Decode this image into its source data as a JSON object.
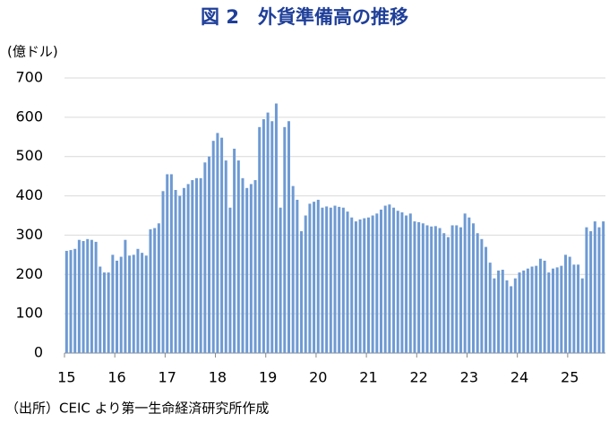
{
  "chart_data": {
    "type": "bar",
    "title": "図 2　外貨準備高の推移",
    "y_label": "(億ドル)",
    "source": "（出所）CEIC より第一生命経済研究所作成",
    "color": "#6e9ad3",
    "grid": true,
    "ylim": [
      0,
      700
    ],
    "yticks": [
      0,
      100,
      200,
      300,
      400,
      500,
      600,
      700
    ],
    "categories": [
      "15",
      null,
      null,
      null,
      null,
      null,
      null,
      null,
      null,
      null,
      null,
      null,
      "16",
      null,
      null,
      null,
      null,
      null,
      null,
      null,
      null,
      null,
      null,
      null,
      "17",
      null,
      null,
      null,
      null,
      null,
      null,
      null,
      null,
      null,
      null,
      null,
      "18",
      null,
      null,
      null,
      null,
      null,
      null,
      null,
      null,
      null,
      null,
      null,
      "19",
      null,
      null,
      null,
      null,
      null,
      null,
      null,
      null,
      null,
      null,
      null,
      "20",
      null,
      null,
      null,
      null,
      null,
      null,
      null,
      null,
      null,
      null,
      null,
      "21",
      null,
      null,
      null,
      null,
      null,
      null,
      null,
      null,
      null,
      null,
      null,
      "22",
      null,
      null,
      null,
      null,
      null,
      null,
      null,
      null,
      null,
      null,
      null,
      "23",
      null,
      null,
      null,
      null,
      null,
      null,
      null,
      null,
      null,
      null,
      null,
      "24",
      null,
      null,
      null,
      null,
      null,
      null,
      null,
      null,
      null,
      null,
      null,
      "25",
      null,
      null,
      null,
      null,
      null,
      null,
      null,
      null
    ],
    "values": [
      260,
      262,
      265,
      288,
      285,
      290,
      288,
      283,
      220,
      205,
      205,
      250,
      235,
      245,
      288,
      248,
      250,
      265,
      255,
      248,
      315,
      318,
      330,
      412,
      455,
      455,
      415,
      400,
      420,
      430,
      440,
      445,
      445,
      485,
      500,
      540,
      560,
      548,
      490,
      370,
      520,
      490,
      445,
      420,
      430,
      440,
      575,
      595,
      612,
      590,
      635,
      370,
      575,
      590,
      425,
      390,
      310,
      350,
      380,
      385,
      390,
      370,
      373,
      370,
      375,
      372,
      370,
      360,
      345,
      335,
      340,
      343,
      345,
      350,
      355,
      365,
      375,
      378,
      370,
      362,
      358,
      350,
      355,
      335,
      333,
      330,
      325,
      322,
      323,
      318,
      305,
      295,
      325,
      325,
      320,
      355,
      345,
      330,
      305,
      290,
      270,
      230,
      190,
      210,
      212,
      185,
      170,
      190,
      205,
      210,
      215,
      220,
      222,
      240,
      235,
      205,
      215,
      218,
      222,
      250,
      245,
      225,
      225,
      190,
      320,
      310,
      335,
      320,
      335
    ]
  }
}
